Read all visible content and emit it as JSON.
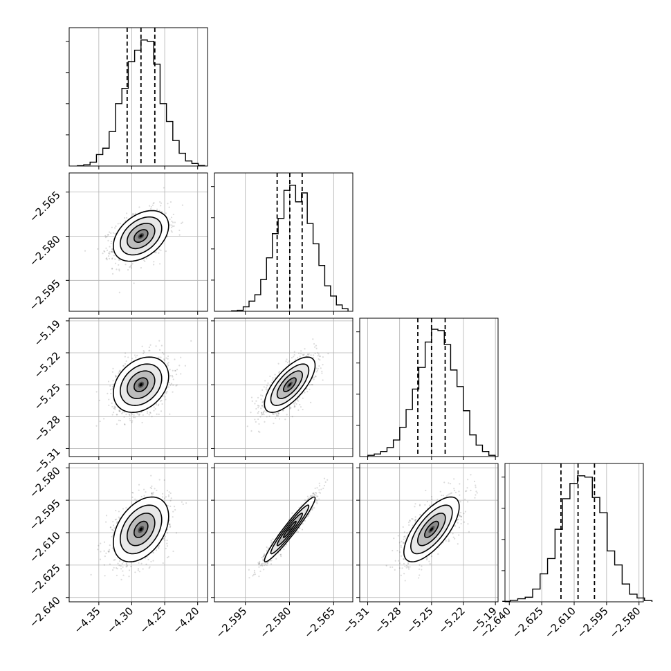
{
  "chart_data": {
    "type": "corner",
    "parameters": [
      {
        "range": [
          -4.395,
          -4.185
        ],
        "ticks": [
          -4.35,
          -4.3,
          -4.25,
          -4.2
        ],
        "tick_labels": [
          "−4.35",
          "−4.30",
          "−4.25",
          "−4.20"
        ],
        "quantiles": [
          -4.307,
          -4.286,
          -4.265
        ],
        "mean": -4.286,
        "sd": 0.021,
        "hist_bin_heights": [
          0.002,
          0.01,
          0.03,
          0.09,
          0.14,
          0.27,
          0.49,
          0.61,
          0.82,
          0.91,
          0.99,
          0.98,
          0.8,
          0.49,
          0.35,
          0.2,
          0.1,
          0.04,
          0.02,
          0.004
        ]
      },
      {
        "range": [
          -2.6055,
          -2.5585
        ],
        "ticks": [
          -2.595,
          -2.58,
          -2.565
        ],
        "tick_labels": [
          "−2.595",
          "−2.580",
          "−2.565"
        ],
        "quantiles": [
          -2.5842,
          -2.5799,
          -2.5757
        ],
        "mean": -2.5799,
        "sd": 0.0043,
        "hist_bin_heights": [
          0.004,
          0.008,
          0.035,
          0.08,
          0.13,
          0.25,
          0.42,
          0.61,
          0.73,
          0.95,
          0.99,
          0.86,
          0.93,
          0.69,
          0.53,
          0.36,
          0.2,
          0.12,
          0.05,
          0.02
        ]
      },
      {
        "range": [
          -5.3175,
          -5.1875
        ],
        "ticks": [
          -5.31,
          -5.28,
          -5.25,
          -5.22,
          -5.19
        ],
        "tick_labels": [
          "−5.31",
          "−5.28",
          "−5.25",
          "−5.22",
          "−5.19"
        ],
        "quantiles": [
          -5.2629,
          -5.25,
          -5.2372
        ],
        "mean": -5.25,
        "sd": 0.013,
        "hist_bin_heights": [
          0.01,
          0.02,
          0.04,
          0.07,
          0.13,
          0.23,
          0.37,
          0.53,
          0.7,
          0.9,
          1.0,
          0.99,
          0.88,
          0.68,
          0.55,
          0.36,
          0.17,
          0.09,
          0.04,
          0.01
        ]
      },
      {
        "range": [
          -2.642,
          -2.578
        ],
        "ticks": [
          -2.64,
          -2.625,
          -2.61,
          -2.595,
          -2.58
        ],
        "tick_labels": [
          "−2.640",
          "−2.625",
          "−2.610",
          "−2.595",
          "−2.580"
        ],
        "quantiles": [
          -2.6161,
          -2.6082,
          -2.6006
        ],
        "mean": -2.6085,
        "sd": 0.0075,
        "hist_bin_heights": [
          0.004,
          0.012,
          0.024,
          0.036,
          0.1,
          0.22,
          0.34,
          0.57,
          0.81,
          0.93,
          0.99,
          0.98,
          0.82,
          0.7,
          0.4,
          0.29,
          0.14,
          0.06,
          0.03,
          0.01
        ]
      }
    ],
    "correlations": [
      [
        1,
        0.4,
        0.3,
        0.4
      ],
      [
        0.4,
        1,
        0.7,
        0.96
      ],
      [
        0.3,
        0.7,
        1,
        0.7
      ],
      [
        0.4,
        0.96,
        0.7,
        1
      ]
    ],
    "contour_levels_sigma": [
      0.5,
      1.0,
      1.5,
      2.0
    ],
    "grid": true
  }
}
